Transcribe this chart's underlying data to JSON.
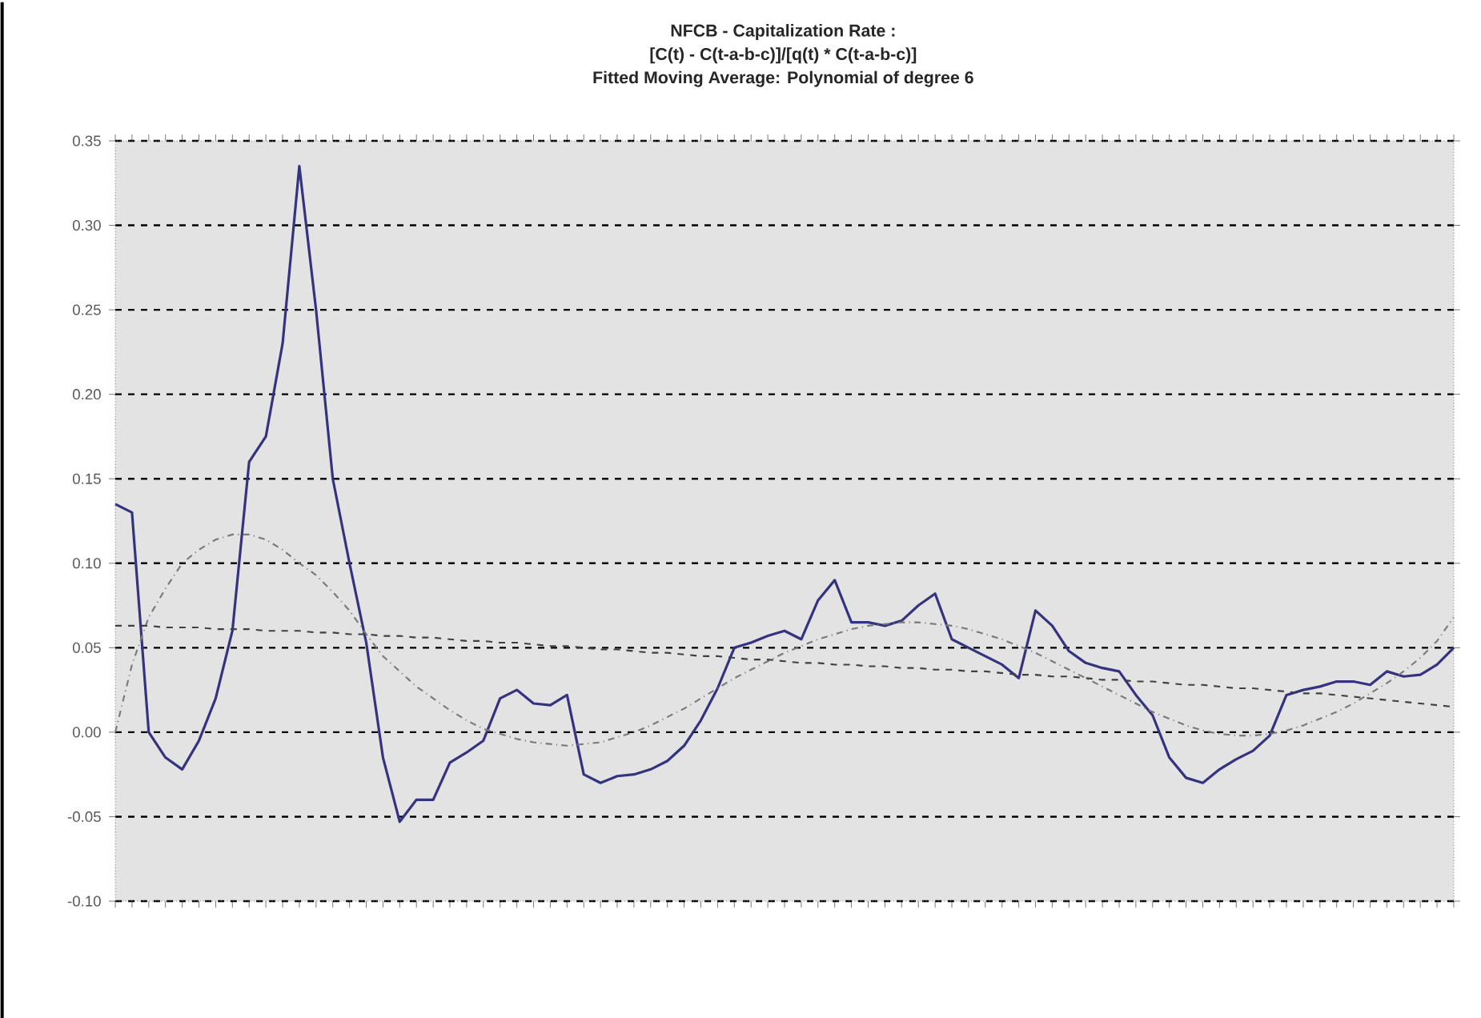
{
  "chart_data": {
    "type": "line",
    "title": "NFCB - Capitalization Rate :",
    "subtitle": "[C(t) - C(t-a-b-c)]/[q(t) * C(t-a-b-c)]",
    "annotations": [
      "Fitted Moving Average: Polynomial of degree 6"
    ],
    "categories": [
      null,
      null,
      null,
      null,
      null,
      null,
      null,
      null,
      null,
      null,
      null,
      null,
      null,
      null,
      null,
      null,
      null,
      null,
      null,
      null,
      null,
      null,
      null,
      null,
      null,
      null,
      null,
      null,
      null,
      null,
      null,
      null,
      null,
      null,
      null,
      null,
      null,
      null,
      null,
      null,
      null,
      null,
      null,
      null,
      null,
      null,
      null,
      null,
      null,
      null,
      null,
      null,
      null,
      null,
      null,
      null,
      null,
      null,
      null,
      null,
      null,
      null,
      null,
      null,
      null,
      null,
      null,
      null,
      null,
      null,
      null,
      null,
      null,
      null,
      null,
      null,
      null,
      null,
      null,
      null,
      null
    ],
    "series": [
      {
        "color": "#333380",
        "line_style": "solid",
        "values": [
          0.135,
          0.13,
          0.0,
          -0.015,
          -0.022,
          -0.005,
          0.02,
          0.06,
          0.16,
          0.175,
          0.23,
          0.335,
          0.25,
          0.15,
          0.1,
          0.053,
          -0.015,
          -0.053,
          -0.04,
          -0.04,
          -0.018,
          -0.012,
          -0.005,
          0.02,
          0.025,
          0.017,
          0.016,
          0.022,
          -0.025,
          -0.03,
          -0.026,
          -0.025,
          -0.022,
          -0.017,
          -0.008,
          0.007,
          0.026,
          0.05,
          0.053,
          0.057,
          0.06,
          0.055,
          0.078,
          0.09,
          0.065,
          0.065,
          0.063,
          0.066,
          0.075,
          0.082,
          0.055,
          0.05,
          0.045,
          0.04,
          0.032,
          0.072,
          0.063,
          0.048,
          0.041,
          0.038,
          0.036,
          0.022,
          0.01,
          -0.015,
          -0.027,
          -0.03,
          -0.022,
          -0.016,
          -0.011,
          -0.002,
          0.022,
          0.025,
          0.027,
          0.03,
          0.03,
          0.028,
          0.036,
          0.033,
          0.034,
          0.04,
          0.05
        ]
      },
      {
        "color": "#7a7a7a",
        "line_style": "dotted",
        "values": [
          0.0,
          0.04,
          0.068,
          0.085,
          0.1,
          0.108,
          0.114,
          0.117,
          0.117,
          0.114,
          0.108,
          0.1,
          0.093,
          0.083,
          0.072,
          0.058,
          0.045,
          0.036,
          0.027,
          0.02,
          0.013,
          0.007,
          0.002,
          -0.001,
          -0.004,
          -0.006,
          -0.007,
          -0.008,
          -0.007,
          -0.006,
          -0.003,
          0.0,
          0.004,
          0.009,
          0.014,
          0.02,
          0.026,
          0.032,
          0.037,
          0.042,
          0.047,
          0.051,
          0.055,
          0.058,
          0.061,
          0.063,
          0.064,
          0.065,
          0.065,
          0.064,
          0.063,
          0.061,
          0.058,
          0.055,
          0.051,
          0.047,
          0.042,
          0.037,
          0.032,
          0.027,
          0.022,
          0.017,
          0.012,
          0.008,
          0.004,
          0.001,
          -0.001,
          -0.002,
          -0.002,
          -0.001,
          0.001,
          0.004,
          0.008,
          0.012,
          0.017,
          0.023,
          0.029,
          0.036,
          0.044,
          0.054,
          0.068
        ]
      },
      {
        "color": "#404040",
        "line_style": "dashed",
        "values": [
          0.063,
          0.063,
          0.063,
          0.062,
          0.062,
          0.062,
          0.061,
          0.061,
          0.061,
          0.06,
          0.06,
          0.06,
          0.059,
          0.059,
          0.058,
          0.058,
          0.057,
          0.057,
          0.056,
          0.056,
          0.055,
          0.054,
          0.054,
          0.053,
          0.053,
          0.052,
          0.051,
          0.051,
          0.05,
          0.049,
          0.049,
          0.048,
          0.047,
          0.047,
          0.046,
          0.045,
          0.045,
          0.044,
          0.043,
          0.043,
          0.042,
          0.041,
          0.041,
          0.04,
          0.04,
          0.039,
          0.039,
          0.038,
          0.038,
          0.037,
          0.037,
          0.036,
          0.036,
          0.035,
          0.034,
          0.034,
          0.033,
          0.033,
          0.032,
          0.031,
          0.031,
          0.03,
          0.03,
          0.029,
          0.028,
          0.028,
          0.027,
          0.026,
          0.026,
          0.025,
          0.024,
          0.023,
          0.023,
          0.022,
          0.021,
          0.02,
          0.019,
          0.018,
          0.017,
          0.016,
          0.015
        ]
      }
    ],
    "ylim": [
      -0.1,
      0.35
    ],
    "yticks": [
      {
        "value": -0.1,
        "label": "-0.10"
      },
      {
        "value": -0.05,
        "label": "-0.05"
      },
      {
        "value": 0.0,
        "label": "0.00"
      },
      {
        "value": 0.05,
        "label": "0.05"
      },
      {
        "value": 0.1,
        "label": "0.10"
      },
      {
        "value": 0.15,
        "label": "0.15"
      },
      {
        "value": 0.2,
        "label": "0.20"
      },
      {
        "value": 0.25,
        "label": "0.25"
      },
      {
        "value": 0.3,
        "label": "0.30"
      },
      {
        "value": 0.35,
        "label": "0.35"
      }
    ],
    "grid": "y",
    "marker": "none"
  }
}
